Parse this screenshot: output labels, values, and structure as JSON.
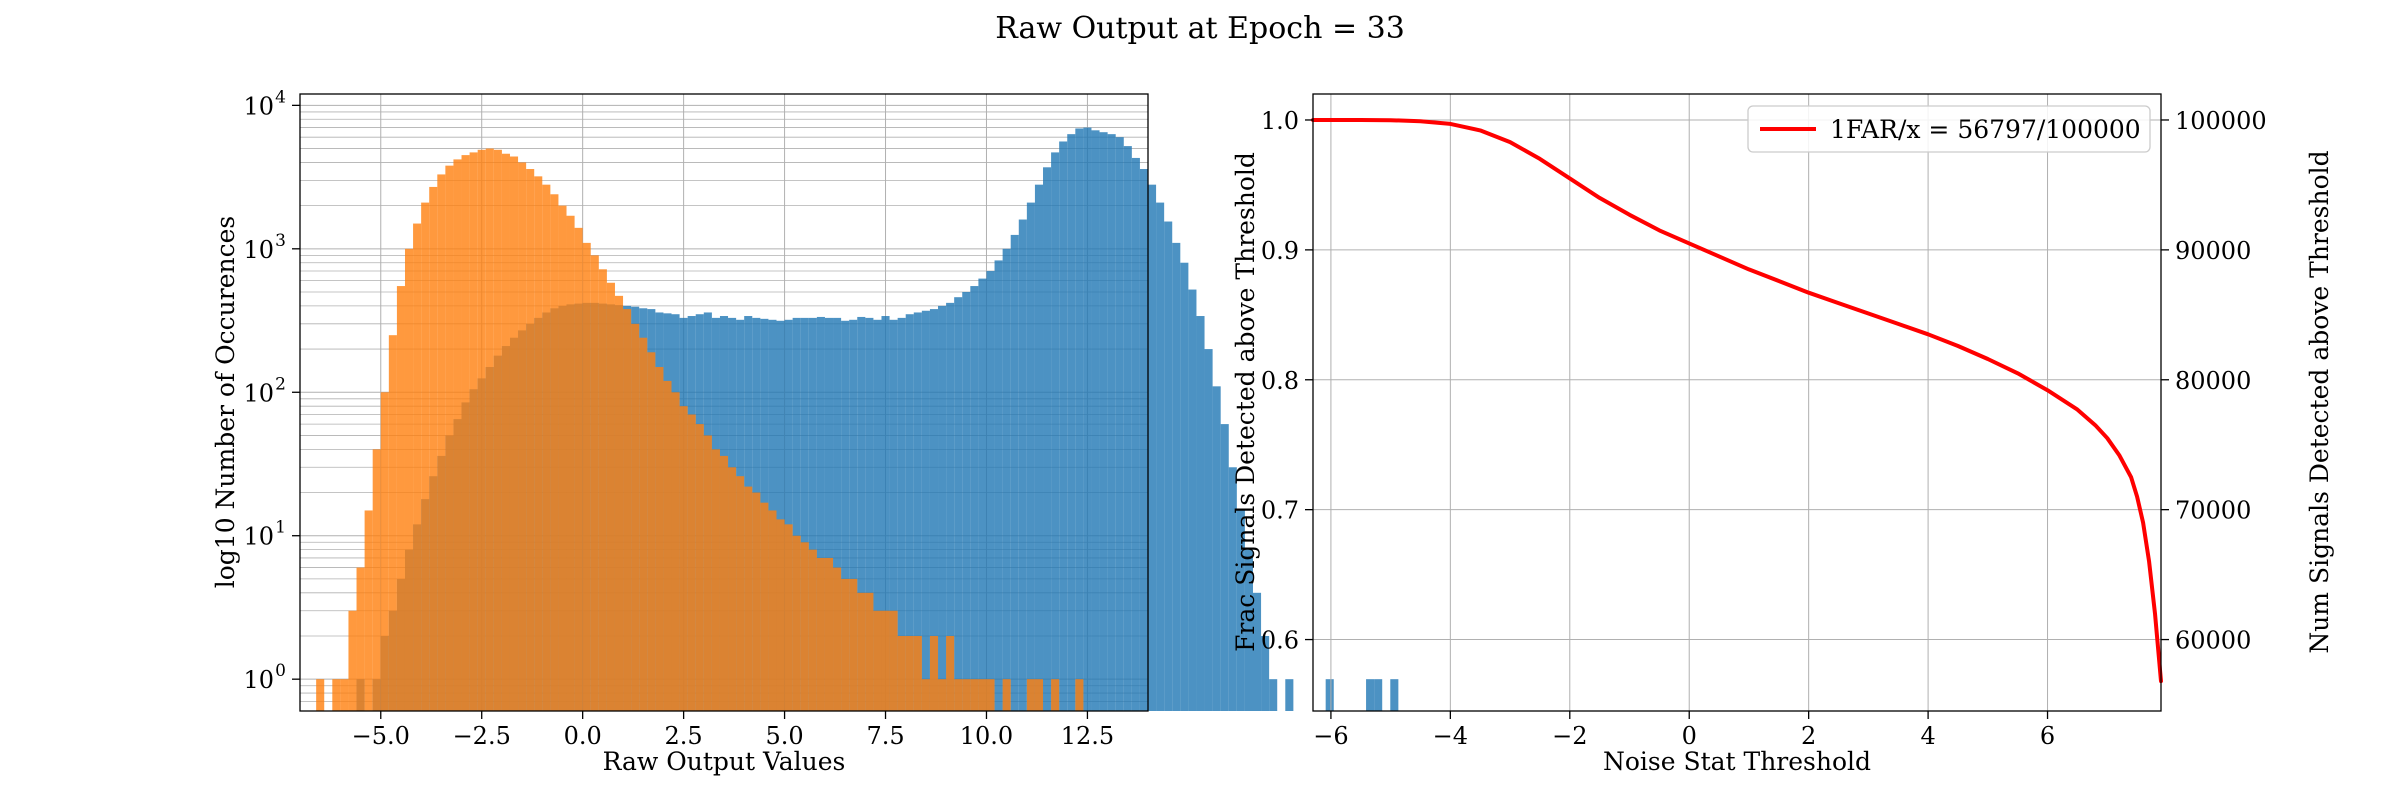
{
  "figure": {
    "suptitle": "Raw Output at Epoch = 33"
  },
  "colors": {
    "signal": "#1f77b4",
    "noise": "#ff7f0e",
    "curve": "#ff0000",
    "grid": "#b0b0b0"
  },
  "chart_data": [
    {
      "type": "bar",
      "subtype": "histogram",
      "title": "",
      "xlabel": "Raw Output Values",
      "ylabel": "log10 Number of Occurences",
      "yscale": "log",
      "xlim": [
        -7.0,
        14.0
      ],
      "ylim": [
        0.6,
        12000
      ],
      "xticks": [
        -5.0,
        -2.5,
        0.0,
        2.5,
        5.0,
        7.5,
        10.0,
        12.5
      ],
      "xtick_labels": [
        "−5.0",
        "−2.5",
        "0.0",
        "2.5",
        "5.0",
        "7.5",
        "10.0",
        "12.5"
      ],
      "yticks": [
        1,
        10,
        100,
        1000,
        10000
      ],
      "ytick_labels": [
        [
          "10",
          "0"
        ],
        [
          "10",
          "1"
        ],
        [
          "10",
          "2"
        ],
        [
          "10",
          "3"
        ],
        [
          "10",
          "4"
        ]
      ],
      "grid": true,
      "bin_start": -6.6,
      "bin_width": 0.2,
      "series": [
        {
          "color_key": "signal",
          "alpha": 0.8,
          "values": [
            0,
            0,
            0,
            0,
            0,
            1,
            0,
            1,
            2,
            3,
            5,
            8,
            12,
            18,
            26,
            36,
            50,
            65,
            85,
            105,
            125,
            150,
            180,
            210,
            240,
            270,
            300,
            330,
            360,
            385,
            400,
            410,
            415,
            420,
            420,
            415,
            410,
            405,
            400,
            395,
            385,
            380,
            360,
            355,
            350,
            330,
            340,
            350,
            360,
            330,
            340,
            330,
            320,
            340,
            330,
            325,
            320,
            315,
            320,
            330,
            330,
            330,
            335,
            330,
            330,
            315,
            320,
            335,
            330,
            320,
            340,
            320,
            330,
            350,
            360,
            370,
            380,
            400,
            420,
            460,
            500,
            550,
            620,
            700,
            830,
            1000,
            1250,
            1600,
            2100,
            2800,
            3700,
            4700,
            5600,
            6300,
            6900,
            7000,
            6700,
            6500,
            6300,
            6000,
            5200,
            4300,
            3600,
            2800,
            2100,
            1550,
            1100,
            800,
            520,
            340,
            200,
            110,
            60,
            30,
            15,
            8,
            4,
            2,
            1,
            0,
            1,
            0,
            0,
            0,
            0,
            1,
            0,
            0,
            0,
            0,
            1,
            1,
            0,
            1
          ]
        },
        {
          "color_key": "noise",
          "alpha": 0.8,
          "values": [
            1,
            0,
            1,
            1,
            3,
            6,
            15,
            40,
            100,
            250,
            550,
            1000,
            1500,
            2100,
            2700,
            3300,
            3800,
            4200,
            4500,
            4700,
            4900,
            5000,
            4900,
            4600,
            4400,
            4000,
            3600,
            3200,
            2800,
            2400,
            2000,
            1700,
            1400,
            1100,
            900,
            720,
            580,
            470,
            380,
            300,
            240,
            190,
            150,
            120,
            100,
            80,
            70,
            60,
            50,
            40,
            36,
            30,
            26,
            22,
            20,
            17,
            15,
            13,
            12,
            10,
            9,
            8,
            7,
            7,
            6,
            5,
            5,
            4,
            4,
            3,
            3,
            3,
            2,
            2,
            2,
            1,
            2,
            1,
            2,
            1,
            1,
            1,
            1,
            1,
            0,
            1,
            0,
            0,
            1,
            1,
            0,
            1,
            0,
            0,
            1,
            0,
            0,
            0,
            0
          ]
        }
      ]
    },
    {
      "type": "line",
      "title": "",
      "xlabel": "Noise Stat Threshold",
      "ylabel": "Frac Signals Detected above Threshold",
      "ylabel_right": "Num Signals Detected above Threshold",
      "xlim": [
        -6.3,
        7.9
      ],
      "ylim": [
        0.545,
        1.02
      ],
      "ylim_right": [
        54500,
        102000
      ],
      "xticks": [
        -6,
        -4,
        -2,
        0,
        2,
        4,
        6
      ],
      "xtick_labels": [
        "−6",
        "−4",
        "−2",
        "0",
        "2",
        "4",
        "6"
      ],
      "yticks": [
        0.6,
        0.7,
        0.8,
        0.9,
        1.0
      ],
      "ytick_labels": [
        "0.6",
        "0.7",
        "0.8",
        "0.9",
        "1.0"
      ],
      "yticks_right": [
        60000,
        70000,
        80000,
        90000,
        100000
      ],
      "ytick_labels_right": [
        "60000",
        "70000",
        "80000",
        "90000",
        "100000"
      ],
      "grid": true,
      "legend": {
        "label": "1FAR/x = 56797/100000",
        "placement": "upper right"
      },
      "series": [
        {
          "name": "1FAR/x = 56797/100000",
          "color_key": "curve",
          "x": [
            -6.3,
            -5.5,
            -5.0,
            -4.5,
            -4.0,
            -3.5,
            -3.0,
            -2.5,
            -2.0,
            -1.5,
            -1.0,
            -0.5,
            0.0,
            0.5,
            1.0,
            1.5,
            2.0,
            2.5,
            3.0,
            3.5,
            4.0,
            4.5,
            5.0,
            5.5,
            6.0,
            6.5,
            6.8,
            7.0,
            7.2,
            7.4,
            7.5,
            7.6,
            7.7,
            7.8,
            7.9
          ],
          "y": [
            1.0,
            1.0,
            0.9998,
            0.999,
            0.997,
            0.992,
            0.983,
            0.97,
            0.955,
            0.94,
            0.927,
            0.915,
            0.905,
            0.895,
            0.885,
            0.876,
            0.867,
            0.859,
            0.851,
            0.843,
            0.835,
            0.826,
            0.816,
            0.805,
            0.792,
            0.777,
            0.765,
            0.755,
            0.742,
            0.725,
            0.71,
            0.69,
            0.66,
            0.62,
            0.568
          ]
        }
      ]
    }
  ]
}
